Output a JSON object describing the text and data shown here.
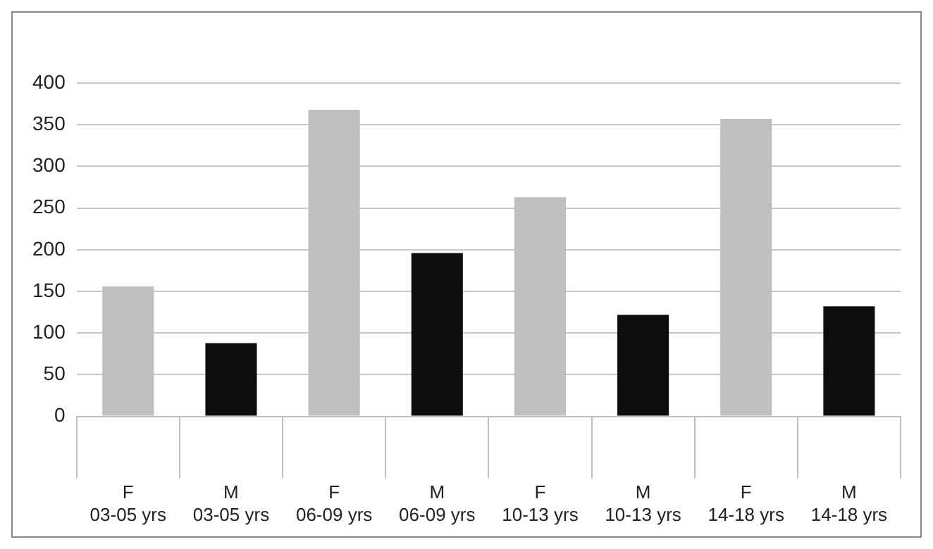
{
  "chart_data": {
    "type": "bar",
    "categories": [
      "F\n03-05 yrs",
      "M\n03-05 yrs",
      "F\n06-09 yrs",
      "M\n06-09 yrs",
      "F\n10-13 yrs",
      "M\n10-13 yrs",
      "F\n14-18 yrs",
      "M\n14-18 yrs"
    ],
    "values": [
      156,
      88,
      368,
      196,
      263,
      122,
      357,
      132
    ],
    "colors": [
      "#bfbfbf",
      "#0d0d0d",
      "#bfbfbf",
      "#0d0d0d",
      "#bfbfbf",
      "#0d0d0d",
      "#bfbfbf",
      "#0d0d0d"
    ],
    "ylim": [
      0,
      400
    ],
    "yticks": [
      0,
      50,
      100,
      150,
      200,
      250,
      300,
      350,
      400
    ],
    "grid": "y",
    "legend": false
  }
}
